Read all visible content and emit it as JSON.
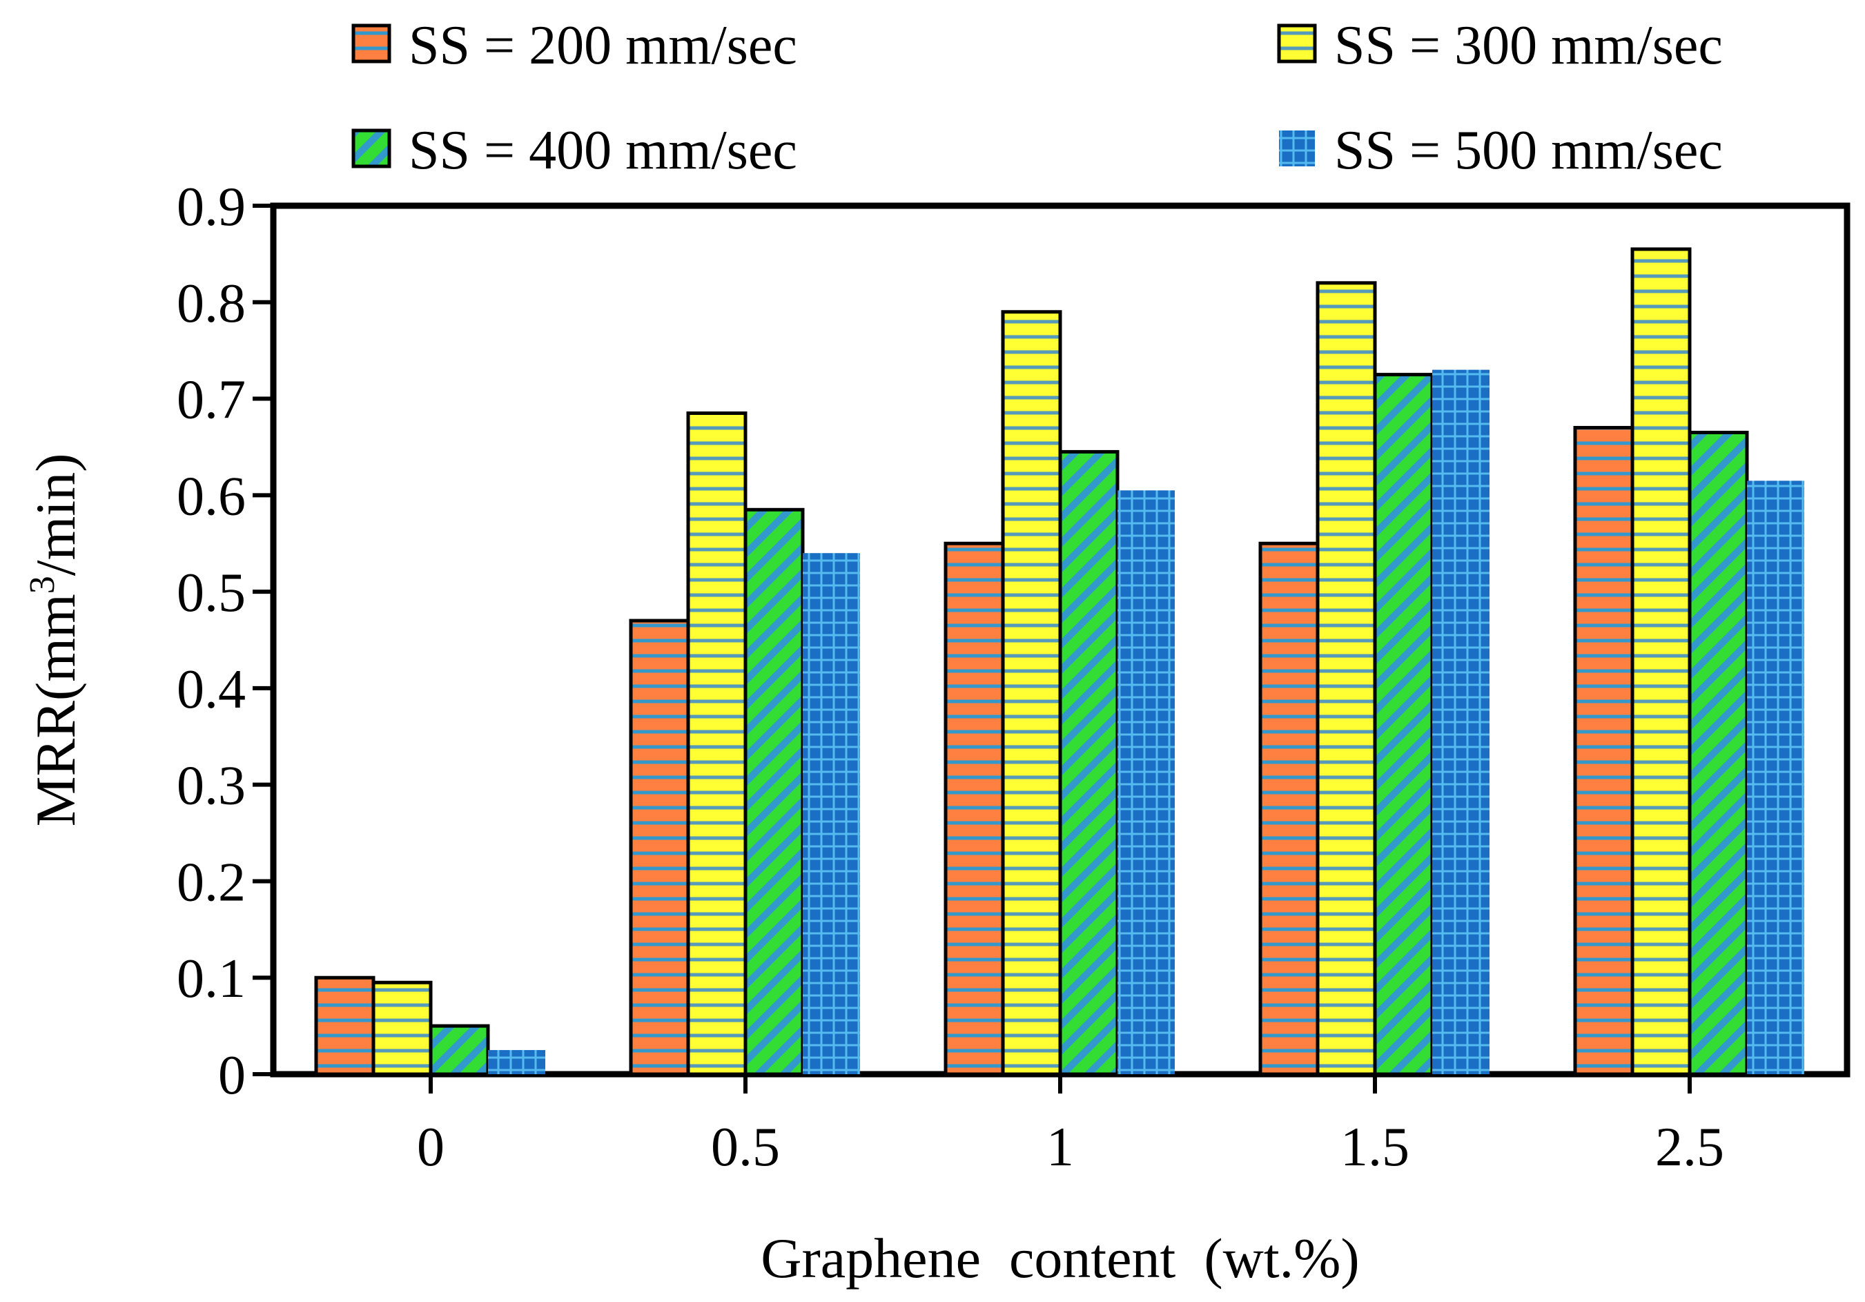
{
  "chart_data": {
    "type": "bar",
    "title": "",
    "xlabel": "Graphene  content  (wt.%)",
    "ylabel": {
      "prefix": "MRR(mm",
      "superscript": "3",
      "suffix": "/min)"
    },
    "categories": [
      "0",
      "0.5",
      "1",
      "1.5",
      "2.5"
    ],
    "ylim": [
      0,
      0.9
    ],
    "yticks": [
      "0",
      "0.1",
      "0.2",
      "0.3",
      "0.4",
      "0.5",
      "0.6",
      "0.7",
      "0.8",
      "0.9"
    ],
    "legend_position": "top",
    "series": [
      {
        "name": "SS = 200 mm/sec",
        "values": [
          0.1,
          0.47,
          0.55,
          0.55,
          0.67
        ],
        "color": "#ff8040",
        "stroke": "#3399cc",
        "pattern": "horizontal-lines"
      },
      {
        "name": "SS = 300 mm/sec",
        "values": [
          0.095,
          0.685,
          0.79,
          0.82,
          0.855
        ],
        "color": "#ffff33",
        "stroke": "#5599bb",
        "pattern": "horizontal-lines"
      },
      {
        "name": "SS = 400 mm/sec",
        "values": [
          0.05,
          0.585,
          0.645,
          0.725,
          0.665
        ],
        "color": "#33dd33",
        "stroke": "#3399cc",
        "pattern": "diagonal-stripes"
      },
      {
        "name": "SS = 500 mm/sec",
        "values": [
          0.025,
          0.54,
          0.605,
          0.73,
          0.615
        ],
        "color": "#1a6fc4",
        "stroke": "#44aadd",
        "pattern": "grid"
      }
    ]
  }
}
